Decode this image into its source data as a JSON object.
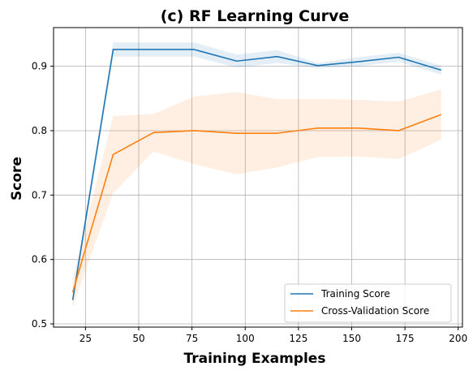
{
  "chart_data": {
    "type": "line",
    "title": "(c) RF Learning Curve",
    "xlabel": "Training Examples",
    "ylabel": "Score",
    "xlim": [
      10,
      202
    ],
    "ylim": [
      0.495,
      0.96
    ],
    "xticks": [
      25,
      50,
      75,
      100,
      125,
      150,
      175,
      200
    ],
    "yticks": [
      0.5,
      0.6,
      0.7,
      0.8,
      0.9
    ],
    "grid": true,
    "legend_position": "lower-right",
    "x": [
      19,
      38,
      57,
      76,
      96,
      115,
      134,
      153,
      172,
      192
    ],
    "series": [
      {
        "name": "Training Score",
        "color": "#1f77b4",
        "values": [
          0.537,
          0.926,
          0.926,
          0.926,
          0.908,
          0.915,
          0.901,
          0.907,
          0.914,
          0.894
        ],
        "band_low": [
          0.528,
          0.915,
          0.915,
          0.915,
          0.898,
          0.905,
          0.897,
          0.9,
          0.907,
          0.887
        ],
        "band_high": [
          0.546,
          0.937,
          0.937,
          0.937,
          0.918,
          0.925,
          0.905,
          0.914,
          0.921,
          0.901
        ]
      },
      {
        "name": "Cross-Validation Score",
        "color": "#ff7f0e",
        "values": [
          0.549,
          0.763,
          0.797,
          0.8,
          0.796,
          0.796,
          0.804,
          0.804,
          0.8,
          0.825
        ],
        "band_low": [
          0.527,
          0.703,
          0.768,
          0.748,
          0.732,
          0.743,
          0.759,
          0.76,
          0.756,
          0.786
        ],
        "band_high": [
          0.571,
          0.823,
          0.826,
          0.853,
          0.86,
          0.849,
          0.849,
          0.848,
          0.845,
          0.864
        ]
      }
    ]
  }
}
